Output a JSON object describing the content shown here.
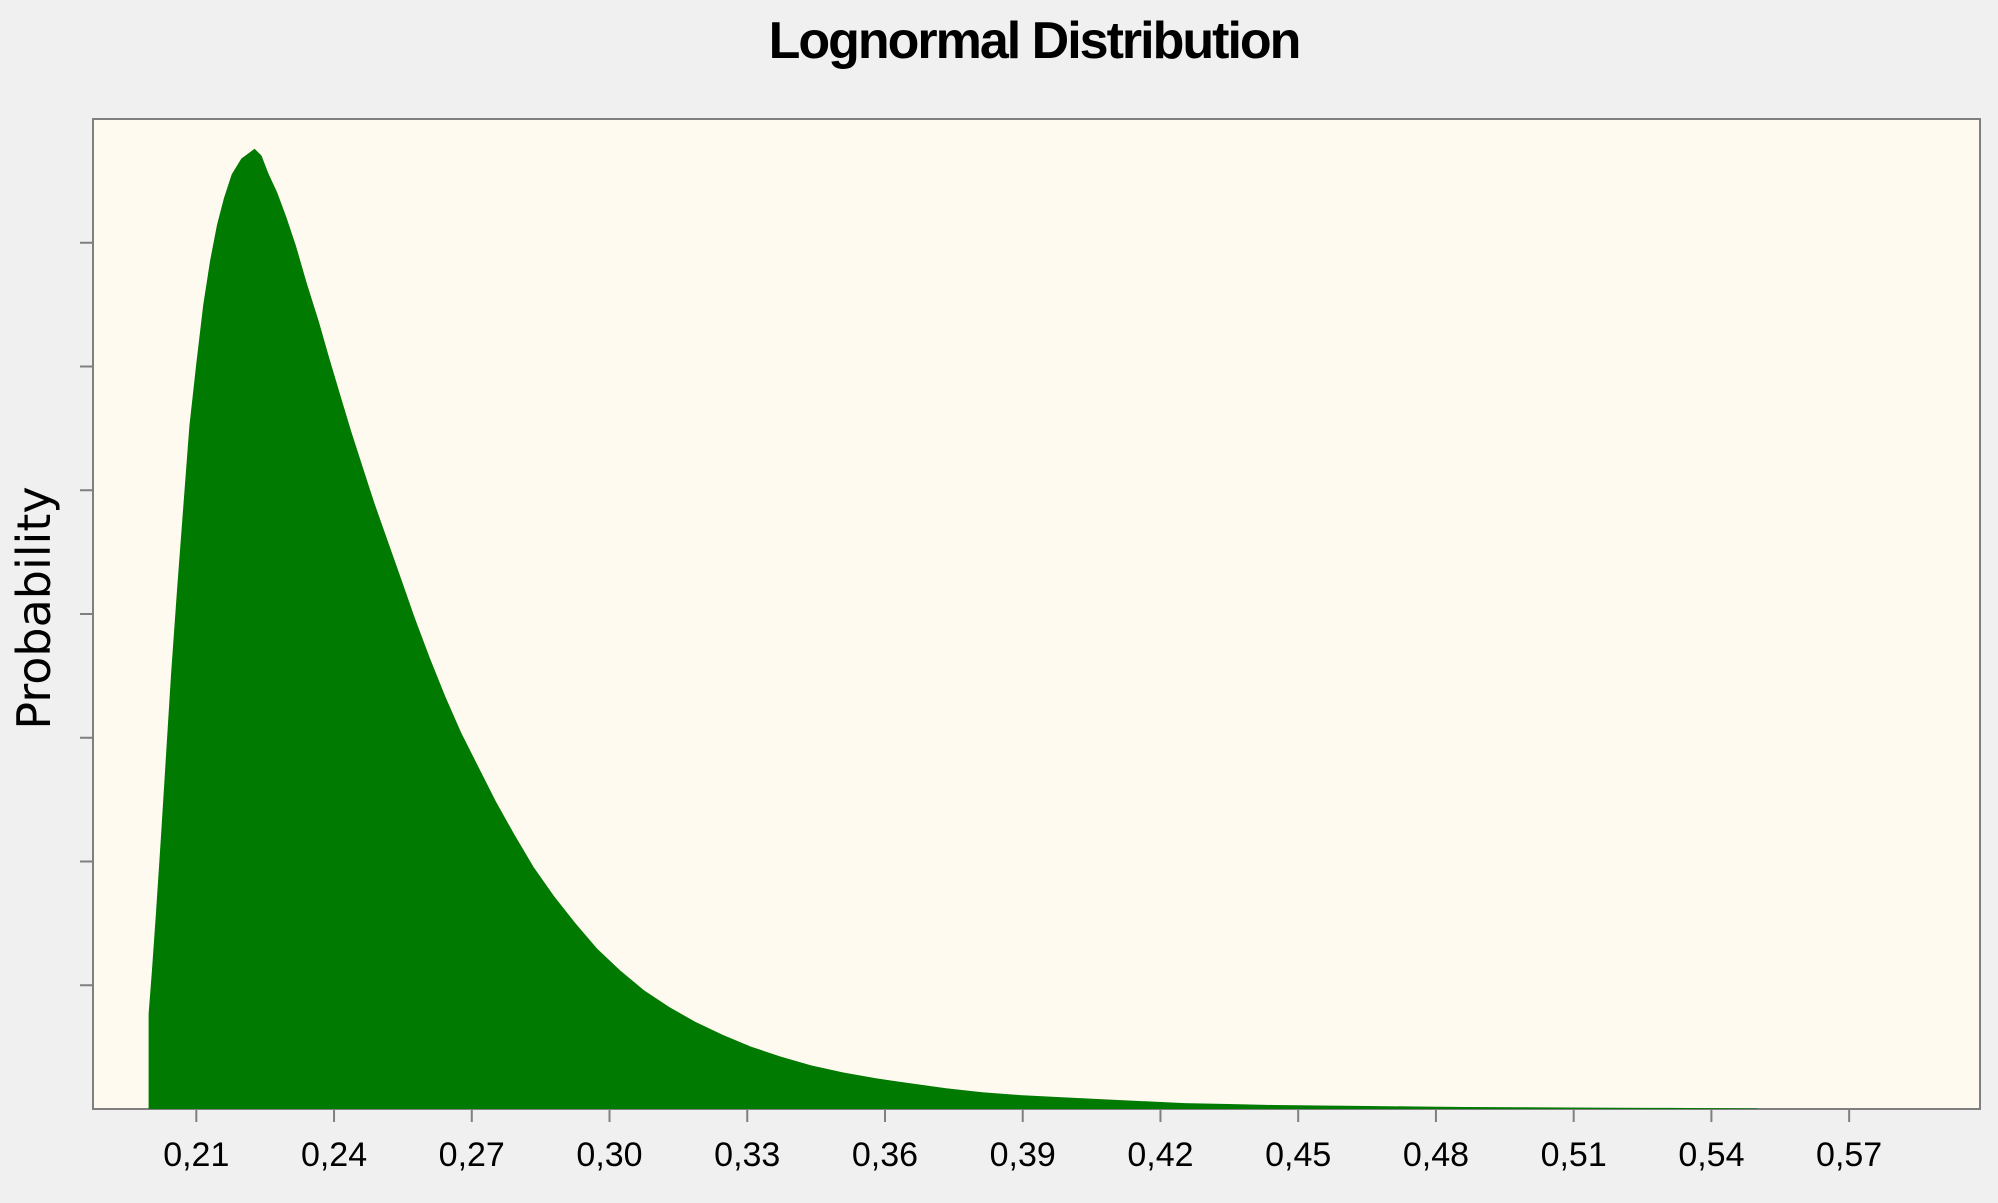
{
  "chart_data": {
    "type": "area",
    "title": "Lognormal Distribution",
    "xlabel": "",
    "ylabel": "Probability",
    "xlim": [
      0.1875,
      0.5985
    ],
    "ylim": [
      0,
      1.0
    ],
    "x_ticks": [
      0.21,
      0.24,
      0.27,
      0.3,
      0.33,
      0.36,
      0.39,
      0.42,
      0.45,
      0.48,
      0.51,
      0.54,
      0.57
    ],
    "x_tick_labels": [
      "0,21",
      "0,24",
      "0,27",
      "0,30",
      "0,33",
      "0,36",
      "0,39",
      "0,42",
      "0,45",
      "0,48",
      "0,51",
      "0,54",
      "0,57"
    ],
    "y_ticks": [
      0.125,
      0.25,
      0.375,
      0.5,
      0.625,
      0.75,
      0.875
    ],
    "y_tick_labels_visible": false,
    "grid": false,
    "legend": "none",
    "series": [
      {
        "x": [
          0.1996,
          0.2003,
          0.2012,
          0.2022,
          0.2033,
          0.2045,
          0.2058,
          0.2072,
          0.2085,
          0.21,
          0.2115,
          0.213,
          0.2145,
          0.216,
          0.2177,
          0.2198,
          0.2227,
          0.2242,
          0.2257,
          0.2276,
          0.2296,
          0.2317,
          0.234,
          0.2367,
          0.239,
          0.2413,
          0.2437,
          0.2462,
          0.2488,
          0.2516,
          0.2545,
          0.2576,
          0.2609,
          0.2643,
          0.2677,
          0.2714,
          0.2752,
          0.2793,
          0.2835,
          0.2879,
          0.2925,
          0.2973,
          0.3023,
          0.3075,
          0.313,
          0.3187,
          0.3246,
          0.3308,
          0.3372,
          0.3439,
          0.3508,
          0.358,
          0.3655,
          0.3733,
          0.3812,
          0.3895,
          0.398,
          0.4068,
          0.4158,
          0.4252,
          0.4348,
          0.4446,
          0.4547,
          0.465,
          0.4756,
          0.4864,
          0.4974,
          0.5086,
          0.5199,
          0.5313,
          0.5427,
          0.55
        ],
        "values": [
          0.096,
          0.138,
          0.197,
          0.268,
          0.349,
          0.44,
          0.524,
          0.61,
          0.69,
          0.753,
          0.812,
          0.857,
          0.893,
          0.92,
          0.944,
          0.96,
          0.97,
          0.963,
          0.945,
          0.926,
          0.901,
          0.872,
          0.835,
          0.795,
          0.758,
          0.722,
          0.685,
          0.649,
          0.612,
          0.575,
          0.537,
          0.496,
          0.455,
          0.416,
          0.38,
          0.346,
          0.311,
          0.277,
          0.244,
          0.215,
          0.188,
          0.162,
          0.14,
          0.12,
          0.103,
          0.088,
          0.075,
          0.063,
          0.053,
          0.044,
          0.037,
          0.031,
          0.026,
          0.021,
          0.017,
          0.014,
          0.012,
          0.01,
          0.008,
          0.006,
          0.005,
          0.004,
          0.0035,
          0.003,
          0.0025,
          0.002,
          0.0018,
          0.0015,
          0.0013,
          0.0011,
          0.0008,
          0.0005
        ],
        "color": "#007a00"
      }
    ],
    "colors": {
      "plot_background": "#fefaf0",
      "page_background": "#f0f0f0",
      "axis": "#7f7f7f",
      "fill": "#007a00"
    }
  }
}
